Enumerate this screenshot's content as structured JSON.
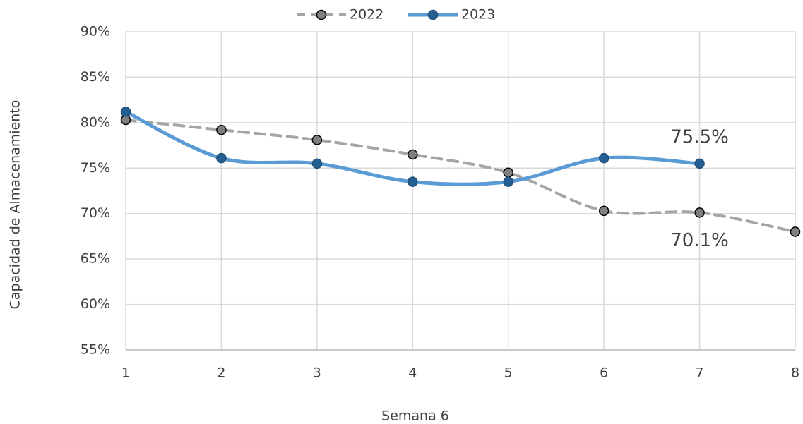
{
  "chart_data": {
    "type": "line",
    "x_label": "Semana 6",
    "y_label": "Capacidad de Almacenamiento",
    "x": [
      1,
      2,
      3,
      4,
      5,
      6,
      7,
      8
    ],
    "xlim": [
      1,
      8
    ],
    "xticks": [
      1,
      2,
      3,
      4,
      5,
      6,
      7,
      8
    ],
    "ylim": [
      55,
      90
    ],
    "yticks": [
      {
        "value": 55,
        "label": "55%"
      },
      {
        "value": 60,
        "label": "60%"
      },
      {
        "value": 65,
        "label": "65%"
      },
      {
        "value": 70,
        "label": "70%"
      },
      {
        "value": 75,
        "label": "75%"
      },
      {
        "value": 80,
        "label": "80%"
      },
      {
        "value": 85,
        "label": "85%"
      },
      {
        "value": 90,
        "label": "90%"
      }
    ],
    "grid": true,
    "legend": "top",
    "series": [
      {
        "name": "2022",
        "color": "#a5a5a5",
        "marker_color": "#7f7f7f",
        "dashed": true,
        "values": [
          80.3,
          79.2,
          78.1,
          76.5,
          74.5,
          70.3,
          70.1,
          68.0
        ],
        "value_labels": [
          null,
          null,
          null,
          null,
          null,
          null,
          "70.1%",
          null
        ]
      },
      {
        "name": "2023",
        "color": "#5b9bd5",
        "marker_color": "#255e91",
        "dashed": false,
        "values": [
          81.2,
          76.1,
          75.5,
          73.5,
          73.5,
          76.1,
          75.5,
          null
        ],
        "value_labels": [
          null,
          null,
          null,
          null,
          null,
          null,
          "75.5%",
          null
        ]
      }
    ]
  }
}
